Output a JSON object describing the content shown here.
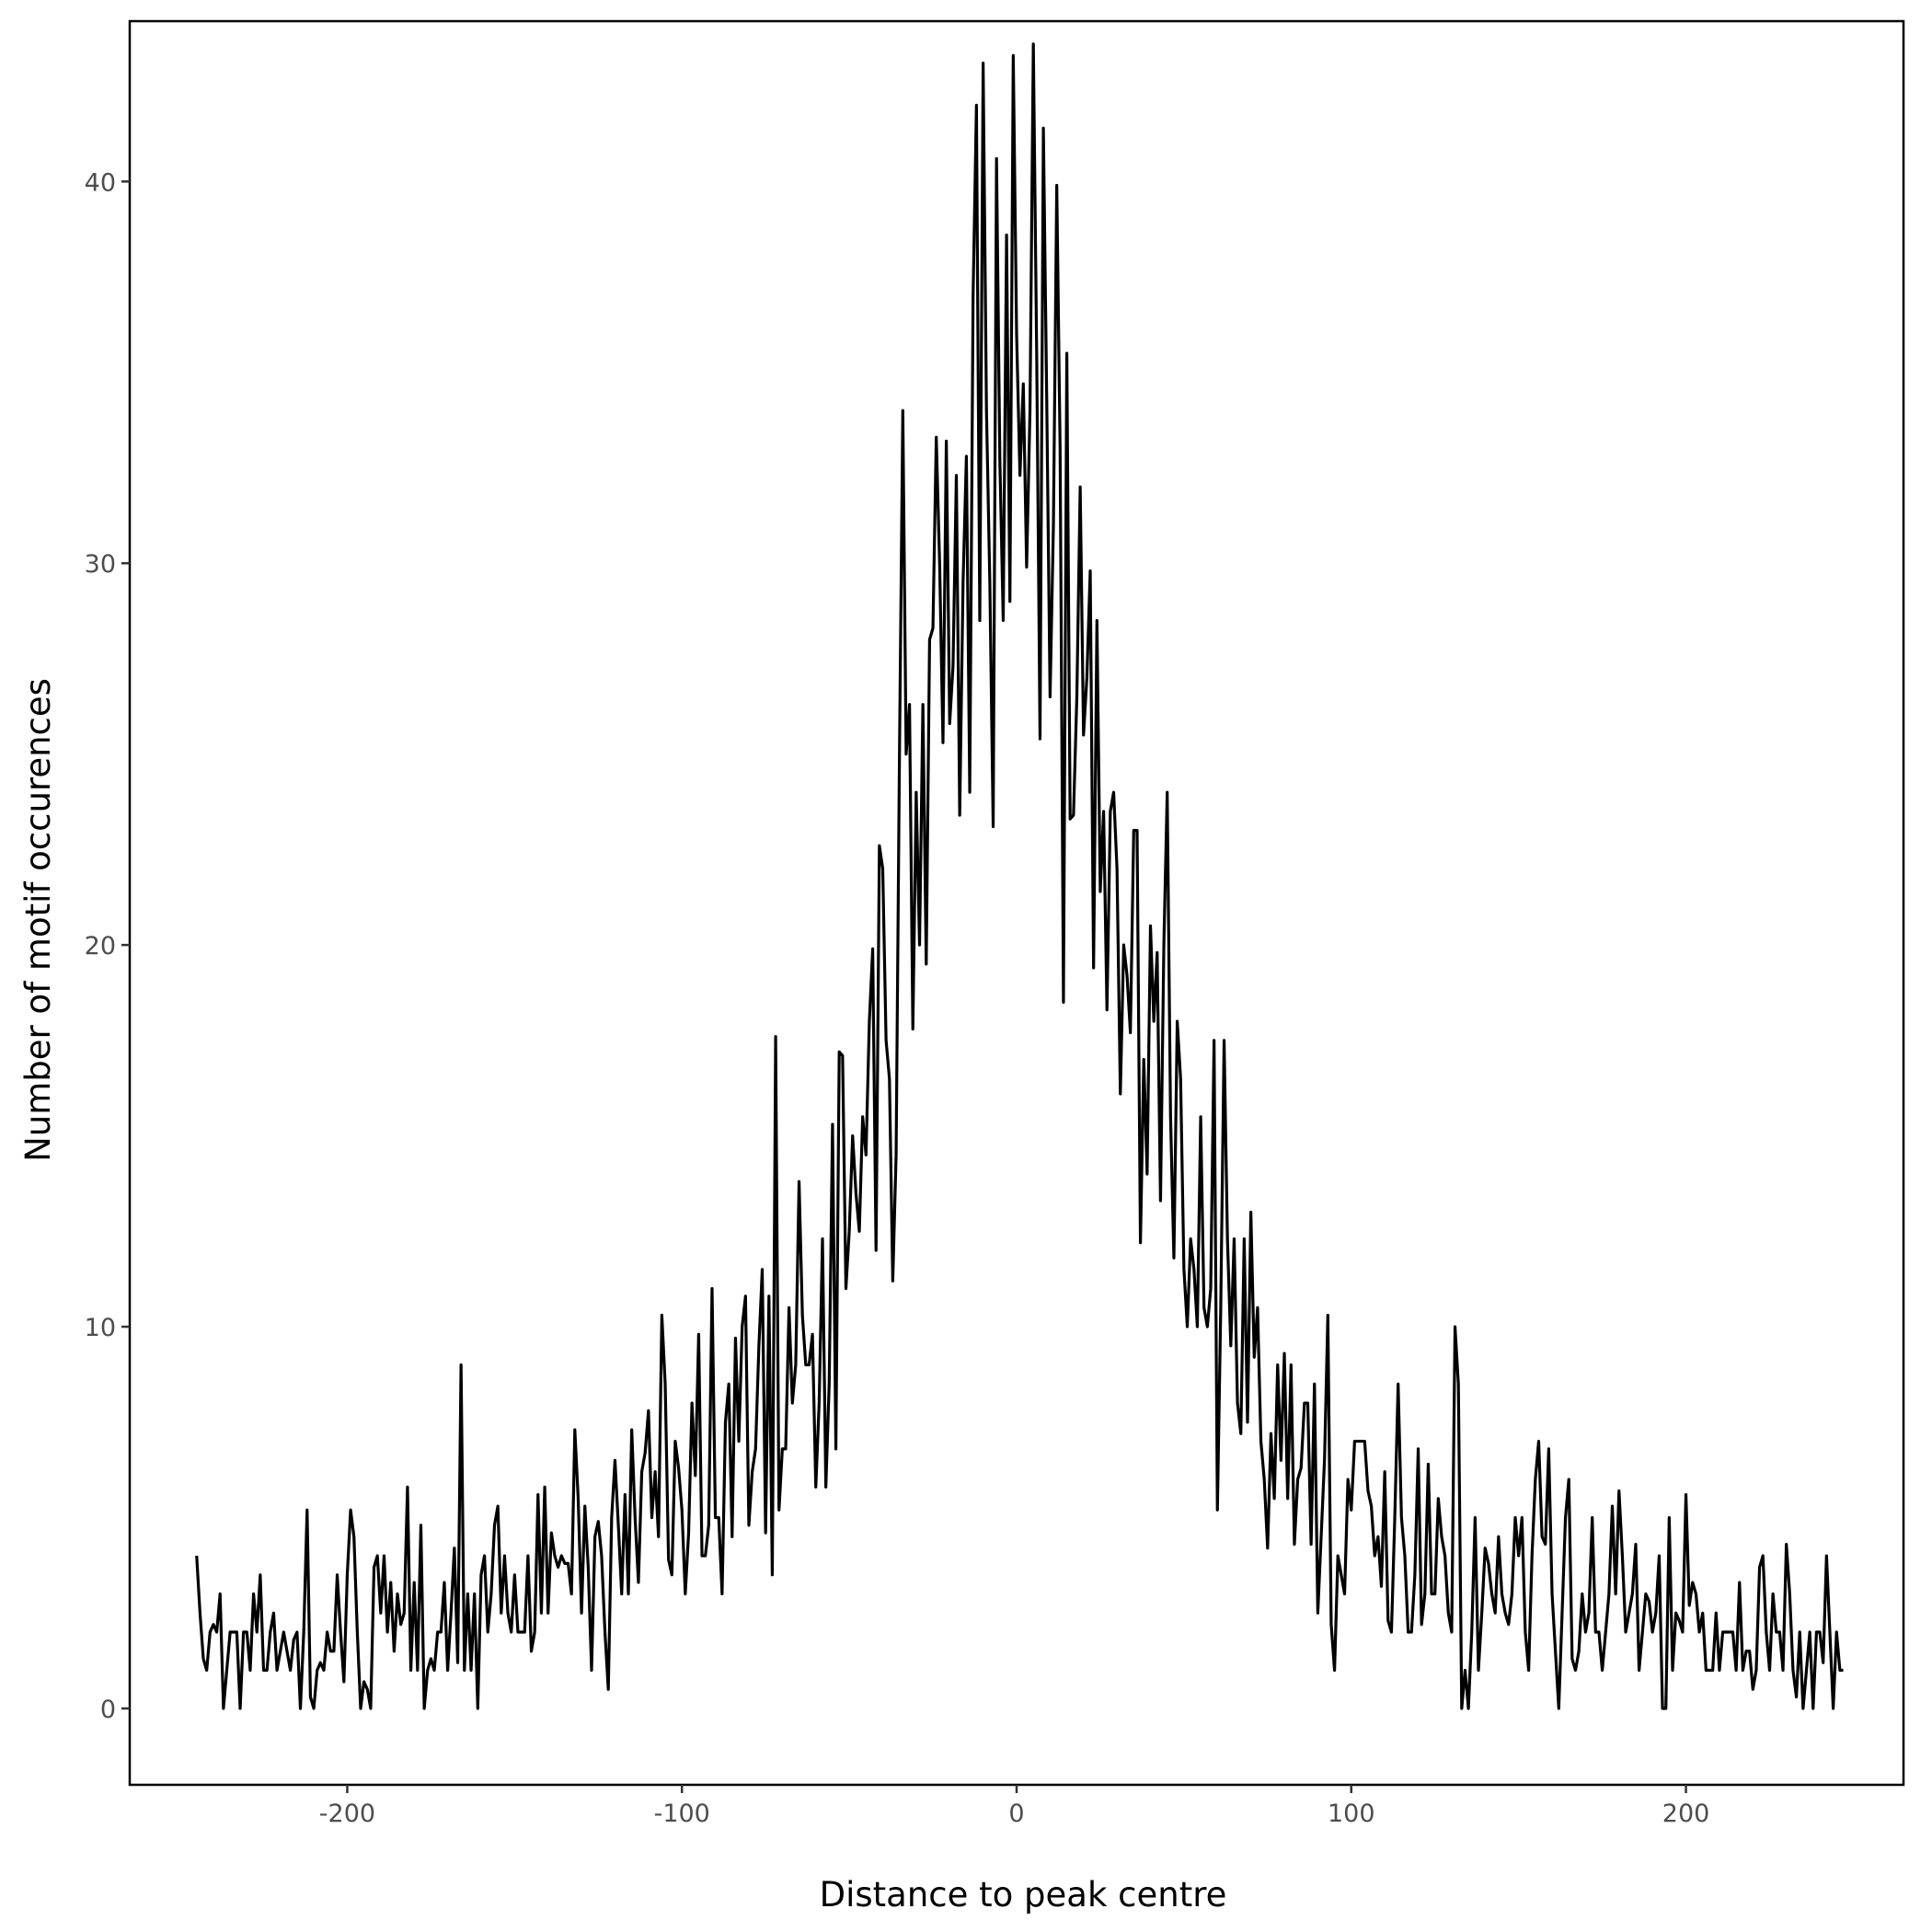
{
  "chart_data": {
    "type": "line",
    "title": "",
    "xlabel": "Distance to peak centre",
    "ylabel": "Number of motif occurences",
    "xlim": [
      -265,
      265
    ],
    "ylim": [
      -2,
      44.2
    ],
    "x_ticks": [
      -200,
      -100,
      0,
      100,
      200
    ],
    "x_tick_labels": [
      "-200",
      "-100",
      "0",
      "100",
      "200"
    ],
    "y_ticks": [
      0,
      10,
      20,
      30,
      40
    ],
    "y_tick_labels": [
      "0",
      "10",
      "20",
      "30",
      "40"
    ],
    "grid": false,
    "legend": "none",
    "line_color": "#000000",
    "series": [
      {
        "x_start": -245,
        "x_step": 1,
        "values": [
          4.0,
          2.5,
          1.3,
          1.0,
          2.0,
          2.2,
          2.0,
          3.0,
          0.0,
          1.0,
          2.0,
          2.0,
          2.0,
          0.0,
          2.0,
          2.0,
          1.0,
          3.0,
          2.0,
          3.5,
          1.0,
          1.0,
          2.0,
          2.5,
          1.0,
          1.5,
          2.0,
          1.5,
          1.0,
          1.8,
          2.0,
          0.0,
          2.0,
          5.2,
          0.3,
          0.0,
          1.0,
          1.2,
          1.0,
          2.0,
          1.5,
          1.5,
          3.5,
          2.0,
          0.7,
          3.5,
          5.2,
          4.5,
          2.0,
          0.0,
          0.7,
          0.5,
          0.0,
          3.7,
          4.0,
          2.5,
          4.0,
          2.0,
          3.3,
          1.5,
          3.0,
          2.2,
          2.5,
          5.8,
          1.0,
          3.3,
          1.0,
          4.8,
          0.0,
          1.0,
          1.3,
          1.0,
          2.0,
          2.0,
          3.3,
          1.0,
          2.5,
          4.2,
          1.2,
          9.0,
          1.0,
          3.0,
          1.0,
          3.0,
          0.0,
          3.5,
          4.0,
          2.0,
          3.0,
          4.8,
          5.3,
          2.5,
          4.0,
          2.5,
          2.0,
          3.5,
          2.0,
          2.0,
          2.0,
          4.0,
          1.5,
          2.0,
          5.6,
          2.5,
          5.8,
          2.5,
          4.6,
          4.0,
          3.7,
          4.0,
          3.8,
          3.8,
          3.0,
          7.3,
          5.5,
          2.5,
          5.3,
          3.7,
          1.0,
          4.5,
          4.9,
          4.0,
          2.0,
          0.5,
          5.0,
          6.5,
          4.8,
          3.0,
          5.6,
          3.0,
          7.3,
          5.0,
          3.3,
          6.2,
          6.7,
          7.8,
          5.0,
          6.2,
          4.5,
          10.3,
          8.5,
          3.9,
          3.5,
          7.0,
          6.3,
          5.2,
          3.0,
          4.6,
          8.0,
          6.1,
          9.8,
          4.0,
          4.0,
          4.8,
          11.0,
          5.0,
          5.0,
          3.0,
          7.5,
          8.5,
          4.5,
          9.7,
          7.0,
          10.0,
          10.8,
          4.8,
          6.2,
          6.8,
          9.5,
          11.5,
          4.6,
          10.8,
          3.5,
          17.6,
          5.2,
          6.8,
          6.8,
          10.5,
          8.0,
          9.0,
          13.8,
          10.3,
          9.0,
          9.0,
          9.8,
          5.8,
          8.0,
          12.3,
          5.8,
          8.5,
          15.3,
          6.8,
          17.2,
          17.1,
          11.0,
          12.5,
          15.0,
          13.5,
          12.5,
          15.5,
          14.5,
          18.0,
          19.9,
          12.0,
          22.6,
          22.0,
          17.5,
          16.5,
          11.2,
          14.5,
          25.0,
          34.0,
          25.0,
          26.3,
          17.8,
          24.0,
          20.0,
          26.3,
          19.5,
          28.0,
          28.3,
          33.3,
          30.0,
          25.3,
          33.2,
          25.8,
          27.3,
          32.3,
          23.4,
          29.5,
          32.8,
          24.0,
          37.0,
          42.0,
          28.5,
          43.1,
          34.0,
          29.5,
          23.1,
          40.6,
          32.7,
          28.5,
          38.6,
          29.0,
          43.3,
          36.0,
          32.3,
          34.7,
          29.9,
          34.0,
          43.6,
          35.5,
          25.4,
          41.4,
          34.3,
          26.5,
          31.0,
          39.9,
          33.0,
          18.5,
          35.5,
          23.3,
          23.4,
          26.5,
          32.0,
          25.5,
          27.0,
          29.8,
          19.4,
          28.5,
          21.4,
          23.5,
          18.3,
          23.5,
          24.0,
          22.0,
          16.1,
          20.0,
          19.2,
          17.7,
          23.0,
          23.0,
          12.2,
          17.0,
          14.0,
          20.5,
          18.0,
          19.8,
          13.3,
          20.0,
          24.0,
          15.5,
          11.8,
          18.0,
          16.5,
          11.5,
          10.0,
          12.3,
          11.5,
          10.0,
          15.5,
          10.5,
          10.0,
          11.0,
          17.5,
          5.2,
          10.5,
          17.5,
          12.3,
          9.5,
          12.3,
          8.0,
          7.2,
          12.3,
          7.5,
          13.0,
          9.2,
          10.5,
          7.0,
          6.0,
          4.2,
          7.2,
          5.5,
          9.0,
          6.5,
          9.3,
          5.5,
          9.0,
          4.3,
          6.0,
          6.3,
          8.0,
          8.0,
          4.3,
          8.5,
          2.5,
          4.5,
          6.5,
          10.3,
          2.2,
          1.0,
          4.0,
          3.5,
          3.0,
          6.0,
          5.2,
          7.0,
          7.0,
          7.0,
          7.0,
          5.7,
          5.3,
          4.0,
          4.5,
          3.2,
          6.2,
          2.3,
          2.0,
          5.0,
          8.5,
          5.0,
          4.0,
          2.0,
          2.0,
          3.5,
          6.8,
          2.2,
          3.0,
          6.4,
          3.0,
          3.0,
          5.5,
          4.5,
          4.0,
          2.5,
          2.0,
          10.0,
          8.5,
          0.0,
          1.0,
          0.0,
          2.0,
          5.0,
          1.0,
          2.5,
          4.2,
          3.8,
          3.0,
          2.5,
          4.5,
          3.0,
          2.5,
          2.2,
          3.0,
          5.0,
          4.0,
          5.0,
          2.0,
          1.0,
          4.0,
          6.0,
          7.0,
          4.5,
          4.3,
          6.8,
          3.0,
          1.5,
          0.0,
          2.5,
          5.0,
          6.0,
          1.3,
          1.0,
          1.5,
          3.0,
          2.0,
          2.5,
          5.0,
          2.0,
          2.0,
          1.0,
          2.0,
          3.0,
          5.3,
          3.0,
          5.7,
          4.0,
          2.0,
          2.5,
          3.0,
          4.3,
          1.0,
          2.0,
          3.0,
          2.8,
          2.0,
          2.5,
          4.0,
          0.0,
          0.0,
          5.0,
          1.0,
          2.5,
          2.3,
          2.0,
          5.6,
          2.7,
          3.3,
          3.0,
          2.0,
          2.5,
          1.0,
          1.0,
          1.0,
          2.5,
          1.0,
          2.0,
          2.0,
          2.0,
          2.0,
          1.0,
          3.3,
          1.0,
          1.5,
          1.5,
          0.5,
          1.0,
          3.7,
          4.0,
          2.0,
          1.0,
          3.0,
          2.0,
          2.0,
          1.0,
          4.3,
          3.0,
          1.0,
          0.3,
          2.0,
          0.0,
          1.0,
          2.0,
          0.0,
          2.0,
          2.0,
          1.2,
          4.0,
          2.0,
          0.0,
          2.0,
          1.0,
          1.0
        ]
      }
    ]
  }
}
